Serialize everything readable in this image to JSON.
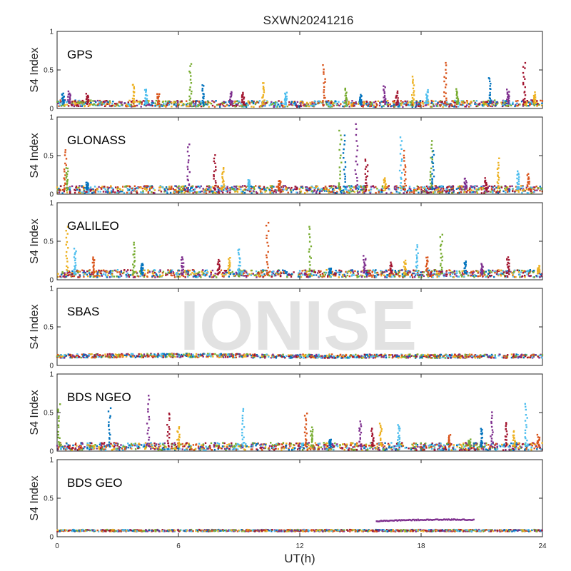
{
  "chart_data": {
    "type": "scatter",
    "title": "SXWN20241216",
    "xlabel": "UT(h)",
    "watermark": "IONISE",
    "xlim": [
      0,
      24
    ],
    "xticks": [
      "0",
      "6",
      "12",
      "18",
      "24"
    ],
    "ylim": [
      0,
      1
    ],
    "yticks": [
      "0",
      "0.5",
      "1"
    ],
    "series_colors": [
      "#0072BD",
      "#D95319",
      "#EDB120",
      "#7E2F8E",
      "#77AC30",
      "#4DBEEE",
      "#A2142F"
    ],
    "panels": [
      {
        "label": "GPS",
        "ylabel": "S4 Index",
        "baseline": [
          [
            0,
            0.07
          ],
          [
            6,
            0.06
          ],
          [
            12,
            0.06
          ],
          [
            18,
            0.06
          ],
          [
            24,
            0.07
          ]
        ],
        "background_noise": 0.05,
        "spikes": [
          [
            0.3,
            0.2
          ],
          [
            0.6,
            0.22
          ],
          [
            1.5,
            0.18
          ],
          [
            3.8,
            0.32
          ],
          [
            4.4,
            0.25
          ],
          [
            5.0,
            0.2
          ],
          [
            6.6,
            0.58
          ],
          [
            7.2,
            0.3
          ],
          [
            8.6,
            0.22
          ],
          [
            9.2,
            0.2
          ],
          [
            10.2,
            0.34
          ],
          [
            11.3,
            0.2
          ],
          [
            13.2,
            0.56
          ],
          [
            14.3,
            0.26
          ],
          [
            15.0,
            0.18
          ],
          [
            16.2,
            0.28
          ],
          [
            16.8,
            0.22
          ],
          [
            17.6,
            0.4
          ],
          [
            18.3,
            0.24
          ],
          [
            19.2,
            0.6
          ],
          [
            19.8,
            0.25
          ],
          [
            21.4,
            0.4
          ],
          [
            22.3,
            0.24
          ],
          [
            23.1,
            0.6
          ],
          [
            23.6,
            0.2
          ]
        ]
      },
      {
        "label": "GLONASS",
        "ylabel": "S4 Index",
        "baseline": [
          [
            0,
            0.06
          ],
          [
            6,
            0.06
          ],
          [
            12,
            0.06
          ],
          [
            18,
            0.06
          ],
          [
            24,
            0.06
          ]
        ],
        "background_noise": 0.06,
        "spikes": [
          [
            0.4,
            0.58
          ],
          [
            0.5,
            0.35
          ],
          [
            1.5,
            0.15
          ],
          [
            6.5,
            0.65
          ],
          [
            7.8,
            0.5
          ],
          [
            8.2,
            0.35
          ],
          [
            9.5,
            0.18
          ],
          [
            11.0,
            0.18
          ],
          [
            14.0,
            0.83
          ],
          [
            14.2,
            0.75
          ],
          [
            14.8,
            0.92
          ],
          [
            15.3,
            0.45
          ],
          [
            16.2,
            0.2
          ],
          [
            17.0,
            0.75
          ],
          [
            17.2,
            0.55
          ],
          [
            18.5,
            0.7
          ],
          [
            18.6,
            0.55
          ],
          [
            20.2,
            0.2
          ],
          [
            21.2,
            0.2
          ],
          [
            21.8,
            0.45
          ],
          [
            22.8,
            0.3
          ],
          [
            23.3,
            0.25
          ]
        ]
      },
      {
        "label": "GALILEO",
        "ylabel": "S4 Index",
        "baseline": [
          [
            0,
            0.08
          ],
          [
            6,
            0.08
          ],
          [
            12,
            0.08
          ],
          [
            18,
            0.08
          ],
          [
            24,
            0.08
          ]
        ],
        "background_noise": 0.06,
        "spikes": [
          [
            0.5,
            0.7
          ],
          [
            0.9,
            0.4
          ],
          [
            1.8,
            0.3
          ],
          [
            3.8,
            0.48
          ],
          [
            4.2,
            0.22
          ],
          [
            6.2,
            0.3
          ],
          [
            8.0,
            0.25
          ],
          [
            8.5,
            0.28
          ],
          [
            9.0,
            0.4
          ],
          [
            10.4,
            0.75
          ],
          [
            12.5,
            0.7
          ],
          [
            13.5,
            0.15
          ],
          [
            15.2,
            0.3
          ],
          [
            16.5,
            0.22
          ],
          [
            17.2,
            0.25
          ],
          [
            17.8,
            0.45
          ],
          [
            18.3,
            0.3
          ],
          [
            19.0,
            0.6
          ],
          [
            20.2,
            0.25
          ],
          [
            21.0,
            0.2
          ],
          [
            22.3,
            0.3
          ],
          [
            23.8,
            0.18
          ]
        ]
      },
      {
        "label": "SBAS",
        "ylabel": "S4 Index",
        "baseline": [
          [
            0,
            0.12
          ],
          [
            6,
            0.13
          ],
          [
            12,
            0.12
          ],
          [
            18,
            0.12
          ],
          [
            24,
            0.12
          ]
        ],
        "background_noise": 0.03,
        "spikes": []
      },
      {
        "label": "BDS NGEO",
        "ylabel": "S4 Index",
        "baseline": [
          [
            0,
            0.06
          ],
          [
            6,
            0.06
          ],
          [
            12,
            0.06
          ],
          [
            18,
            0.06
          ],
          [
            24,
            0.06
          ]
        ],
        "background_noise": 0.06,
        "spikes": [
          [
            0.1,
            0.6
          ],
          [
            2.6,
            0.55
          ],
          [
            4.5,
            0.72
          ],
          [
            5.5,
            0.5
          ],
          [
            6.0,
            0.3
          ],
          [
            9.2,
            0.55
          ],
          [
            12.3,
            0.5
          ],
          [
            12.6,
            0.3
          ],
          [
            13.5,
            0.15
          ],
          [
            15.0,
            0.38
          ],
          [
            15.6,
            0.3
          ],
          [
            16.0,
            0.35
          ],
          [
            16.9,
            0.35
          ],
          [
            19.4,
            0.2
          ],
          [
            20.4,
            0.15
          ],
          [
            21.0,
            0.3
          ],
          [
            21.5,
            0.5
          ],
          [
            22.2,
            0.38
          ],
          [
            22.6,
            0.25
          ],
          [
            23.2,
            0.62
          ],
          [
            23.8,
            0.2
          ]
        ]
      },
      {
        "label": "BDS GEO",
        "ylabel": "S4 Index",
        "baseline": [
          [
            0,
            0.08
          ],
          [
            6,
            0.08
          ],
          [
            12,
            0.08
          ],
          [
            18,
            0.08
          ],
          [
            24,
            0.08
          ]
        ],
        "background_noise": 0.015,
        "spikes": [],
        "arcs": [
          {
            "x0": 15.8,
            "x1": 20.6,
            "y0": 0.2,
            "y1": 0.22,
            "ymid": 0.23,
            "color": "#7E2F8E"
          }
        ]
      }
    ]
  }
}
